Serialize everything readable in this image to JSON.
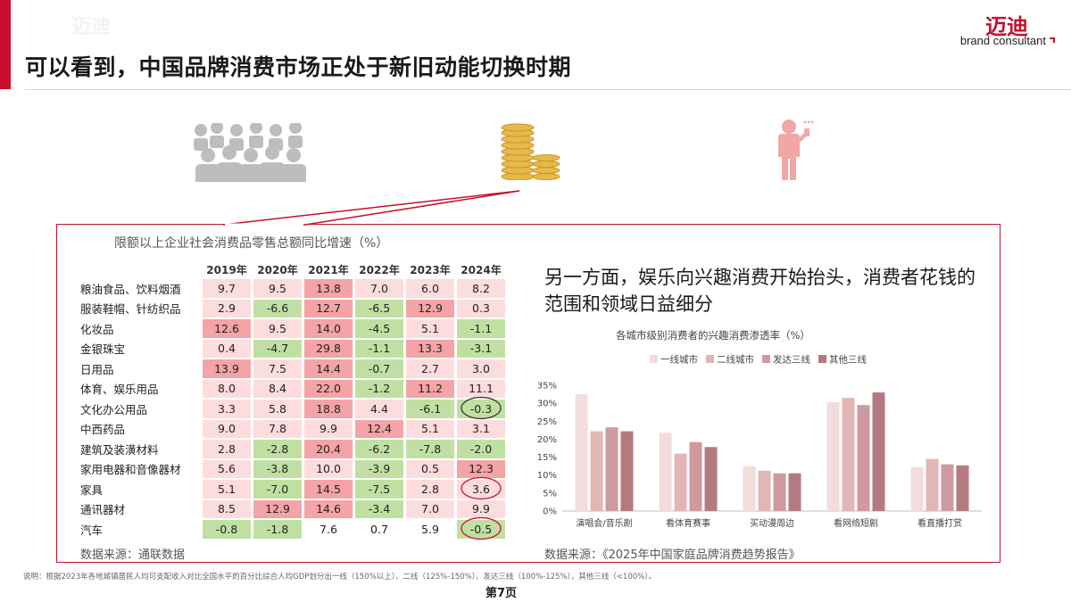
{
  "header": {
    "title": "可以看到，中国品牌消费市场正处于新旧动能切换时期",
    "logo_cn": "迈迪",
    "logo_en": "brand consultant"
  },
  "icons": [
    "people-group-icon",
    "coin-stack-icon",
    "person-phone-icon"
  ],
  "table": {
    "title": "限额以上企业社会消费品零售总额同比增速（%）",
    "years": [
      "2019年",
      "2020年",
      "2021年",
      "2022年",
      "2023年",
      "2024年"
    ],
    "rows": [
      {
        "category": "粮油食品、饮料烟酒",
        "values": [
          "9.7",
          "9.5",
          "13.8",
          "7.0",
          "6.0",
          "8.2"
        ]
      },
      {
        "category": "服装鞋帽、针纺织品",
        "values": [
          "2.9",
          "-6.6",
          "12.7",
          "-6.5",
          "12.9",
          "0.3"
        ]
      },
      {
        "category": "化妆品",
        "values": [
          "12.6",
          "9.5",
          "14.0",
          "-4.5",
          "5.1",
          "-1.1"
        ]
      },
      {
        "category": "金银珠宝",
        "values": [
          "0.4",
          "-4.7",
          "29.8",
          "-1.1",
          "13.3",
          "-3.1"
        ]
      },
      {
        "category": "日用品",
        "values": [
          "13.9",
          "7.5",
          "14.4",
          "-0.7",
          "2.7",
          "3.0"
        ]
      },
      {
        "category": "体育、娱乐用品",
        "values": [
          "8.0",
          "8.4",
          "22.0",
          "-1.2",
          "11.2",
          "11.1"
        ]
      },
      {
        "category": "文化办公用品",
        "values": [
          "3.3",
          "5.8",
          "18.8",
          "4.4",
          "-6.1",
          "-0.3"
        ]
      },
      {
        "category": "中西药品",
        "values": [
          "9.0",
          "7.8",
          "9.9",
          "12.4",
          "5.1",
          "3.1"
        ]
      },
      {
        "category": "建筑及装潢材料",
        "values": [
          "2.8",
          "-2.8",
          "20.4",
          "-6.2",
          "-7.8",
          "-2.0"
        ]
      },
      {
        "category": "家用电器和音像器材",
        "values": [
          "5.6",
          "-3.8",
          "10.0",
          "-3.9",
          "0.5",
          "12.3"
        ]
      },
      {
        "category": "家具",
        "values": [
          "5.1",
          "-7.0",
          "14.5",
          "-7.5",
          "2.8",
          "3.6"
        ]
      },
      {
        "category": "通讯器材",
        "values": [
          "8.5",
          "12.9",
          "14.6",
          "-3.4",
          "7.0",
          "9.9"
        ]
      },
      {
        "category": "汽车",
        "values": [
          "-0.8",
          "-1.8",
          "7.6",
          "0.7",
          "5.9",
          "-0.5"
        ]
      }
    ],
    "shades": [
      [
        "lr",
        "lr",
        "sr",
        "lr",
        "lr",
        "lr"
      ],
      [
        "lr",
        "g",
        "sr",
        "g",
        "sr",
        "lr"
      ],
      [
        "sr",
        "lr",
        "sr",
        "g",
        "lr",
        "g"
      ],
      [
        "lr",
        "g",
        "sr",
        "g",
        "sr",
        "g"
      ],
      [
        "sr",
        "lr",
        "sr",
        "g",
        "lr",
        "lr"
      ],
      [
        "lr",
        "lr",
        "sr",
        "g",
        "sr",
        "lr"
      ],
      [
        "lr",
        "lr",
        "sr",
        "lr",
        "g",
        "g"
      ],
      [
        "lr",
        "lr",
        "lr",
        "sr",
        "lr",
        "lr"
      ],
      [
        "lr",
        "g",
        "sr",
        "g",
        "g",
        "g"
      ],
      [
        "lr",
        "g",
        "lr",
        "g",
        "lr",
        "sr"
      ],
      [
        "lr",
        "g",
        "sr",
        "g",
        "lr",
        "lr"
      ],
      [
        "lr",
        "sr",
        "sr",
        "g",
        "lr",
        "lr"
      ],
      [
        "g",
        "g",
        "w",
        "w",
        "w",
        "g"
      ]
    ],
    "circled": [
      [
        5,
        5
      ],
      [
        9,
        5
      ],
      [
        11,
        5
      ]
    ],
    "source": "数据来源：通联数据"
  },
  "right": {
    "subhead": "另一方面，娱乐向兴趣消费开始抬头，消费者花钱的范围和领域日益细分",
    "source": "数据来源：《2025年中国家庭品牌消费趋势报告》"
  },
  "chart_data": {
    "type": "bar",
    "title": "各城市级别消费者的兴趣消费渗透率（%）",
    "categories": [
      "演唱会/音乐剧",
      "看体育赛事",
      "买动漫周边",
      "看网络短剧",
      "看直播打赏"
    ],
    "series": [
      {
        "name": "一线城市",
        "color": "#f3dcdc",
        "values": [
          32.5,
          21.8,
          12.5,
          30.3,
          12.2
        ]
      },
      {
        "name": "二线城市",
        "color": "#e3b6b6",
        "values": [
          22.2,
          16.0,
          11.2,
          31.5,
          14.5
        ]
      },
      {
        "name": "发达三线",
        "color": "#cf9a9e",
        "values": [
          23.3,
          19.2,
          10.5,
          29.5,
          13.0
        ]
      },
      {
        "name": "其他三线",
        "color": "#b37a80",
        "values": [
          22.2,
          17.8,
          10.5,
          33.0,
          12.7
        ]
      }
    ],
    "ylim": [
      0,
      35
    ],
    "yticks": [
      "0%",
      "5%",
      "10%",
      "15%",
      "20%",
      "25%",
      "30%",
      "35%"
    ],
    "grid": false,
    "legend": "top"
  },
  "footer": {
    "note": "说明：根据2023年各地城镇居民人均可支配收入对比全国水平的百分比综合人均GDP划分出一线（150%以上）、二线（125%-150%）、发达三线（100%-125%），其他三线（<100%）。",
    "page": "第7页"
  }
}
